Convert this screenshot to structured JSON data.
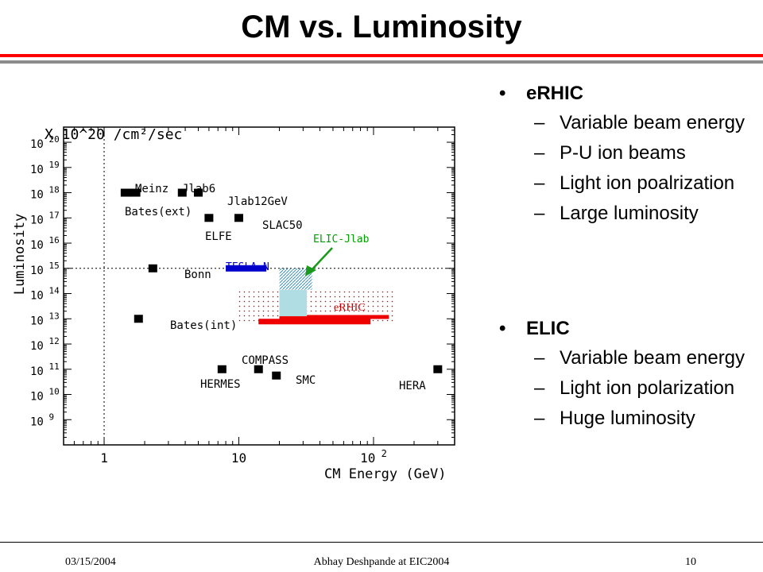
{
  "slide": {
    "title": "CM vs. Luminosity",
    "footer_date": "03/15/2004",
    "footer_center": "Abhay Deshpande at EIC2004",
    "footer_page": "10",
    "bullet_glyph": "•",
    "dash_glyph": "–",
    "groups": [
      {
        "heading": "eRHIC",
        "items": [
          "Variable beam energy",
          "P-U ion beams",
          "Light ion poalrization",
          "Large luminosity"
        ]
      },
      {
        "heading": "ELIC",
        "items": [
          "Variable beam energy",
          "Light ion polarization",
          "Huge luminosity"
        ]
      }
    ]
  },
  "chart_data": {
    "type": "scatter",
    "title": "",
    "xlabel": "CM Energy (GeV)",
    "ylabel": "Luminosity",
    "units_label": "X 10^20 /cm²/sec",
    "x_scale": "log",
    "y_scale": "log",
    "xlim": [
      0.5,
      400
    ],
    "ylim": [
      8,
      20.6
    ],
    "x_ticks": [
      {
        "v": 1,
        "label": "1"
      },
      {
        "v": 10,
        "label": "10"
      },
      {
        "v": 100,
        "label": "10",
        "sup": "2"
      }
    ],
    "y_ticks": [
      20,
      19,
      18,
      17,
      16,
      15,
      14,
      13,
      12,
      11,
      10,
      9
    ],
    "y_tick_base": "10",
    "reference_lines": {
      "x": 1,
      "y": 15
    },
    "facilities": [
      {
        "label": "Meinz",
        "x": 1.7,
        "y": 18
      },
      {
        "label": "Jlab6",
        "x": 3.8,
        "y": 18
      },
      {
        "label": "Jlab12GeV",
        "x": 5,
        "y": 18
      },
      {
        "label": "Bates(ext)",
        "x": 1.45,
        "y": 18
      },
      {
        "label": "ELFE",
        "x": 6,
        "y": 17
      },
      {
        "label": "SLAC50",
        "x": 10,
        "y": 17
      },
      {
        "label": "Bonn",
        "x": 2.3,
        "y": 15
      },
      {
        "label": "Bates(int)",
        "x": 1.8,
        "y": 13
      },
      {
        "label": "HERMES",
        "x": 7.5,
        "y": 11
      },
      {
        "label": "COMPASS",
        "x": 14,
        "y": 11
      },
      {
        "label": "SMC",
        "x": 19,
        "y": 10.75
      },
      {
        "label": "HERA",
        "x": 300,
        "y": 11
      }
    ],
    "regions": [
      {
        "label": "TESLA-N",
        "x_range": [
          8,
          16
        ],
        "y": 15,
        "color": "#0000cc"
      },
      {
        "label": "ELIC-Jlab",
        "x_range": [
          20,
          35
        ],
        "y_range": [
          14,
          15
        ],
        "color": "#5aa8c8"
      },
      {
        "label": "eRHIC",
        "x_range": [
          10,
          140
        ],
        "y_range": [
          12.9,
          14.1
        ],
        "color": "#cc0000"
      }
    ],
    "region_colors": {
      "erhic_bar": "#ee0000",
      "elic_fill": "#b0dce4",
      "tesla_bar": "#0000cc"
    }
  }
}
